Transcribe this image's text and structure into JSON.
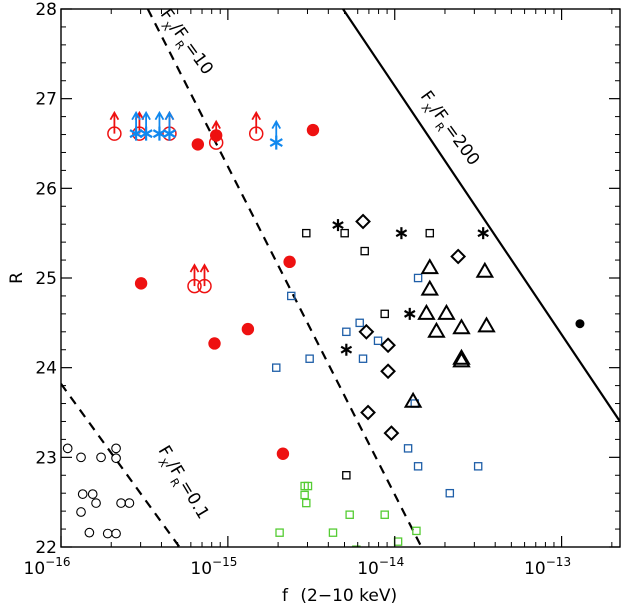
{
  "chart_data": {
    "type": "scatter",
    "xlabel_main": "f",
    "xlabel_suffix": "(2−10 keV)",
    "ylabel": "R",
    "xscale": "log",
    "xlim_log10": [
      -16.0,
      -12.65
    ],
    "ylim": [
      22,
      28
    ],
    "x_ticks": [
      {
        "base": "10",
        "exp": "−16",
        "log10": -16
      },
      {
        "base": "10",
        "exp": "−15",
        "log10": -15
      },
      {
        "base": "10",
        "exp": "−14",
        "log10": -14
      },
      {
        "base": "10",
        "exp": "−13",
        "log10": -13
      }
    ],
    "y_ticks": [
      "22",
      "23",
      "24",
      "25",
      "26",
      "27",
      "28"
    ],
    "ratio_lines": [
      {
        "name": "FX/FR=10",
        "ratio_value": "10",
        "style": "dashed",
        "points": [
          [
            -15.48,
            28.0
          ],
          [
            -13.84,
            22.0
          ]
        ]
      },
      {
        "name": "FX/FR=200",
        "ratio_value": "200",
        "style": "solid",
        "points": [
          [
            -14.31,
            28.0
          ],
          [
            -12.65,
            23.4
          ]
        ]
      },
      {
        "name": "FX/FR=0.1",
        "ratio_value": "0.1",
        "style": "dashed",
        "points": [
          [
            -16.0,
            23.82
          ],
          [
            -15.29,
            22.0
          ]
        ]
      }
    ],
    "ratio_label_parts": {
      "F": "F",
      "sub": "X",
      "slash": "/F",
      "sub2": "R",
      "eq": "="
    },
    "series": [
      {
        "name": "red-filled-circles",
        "marker": "filled-circle",
        "color": "#ee1111",
        "points": [
          [
            -15.52,
            24.94
          ],
          [
            -15.18,
            26.49
          ],
          [
            -15.07,
            26.59
          ],
          [
            -15.08,
            24.27
          ],
          [
            -14.88,
            24.43
          ],
          [
            -14.49,
            26.65
          ],
          [
            -14.63,
            25.18
          ],
          [
            -14.67,
            23.04
          ]
        ]
      },
      {
        "name": "red-open-circles-upper-limit",
        "marker": "open-circle-arrow",
        "color": "#ee1111",
        "points": [
          [
            -15.68,
            26.61
          ],
          [
            -15.53,
            26.61
          ],
          [
            -15.35,
            26.61
          ],
          [
            -15.07,
            26.51
          ],
          [
            -14.83,
            26.61
          ],
          [
            -15.2,
            24.91
          ],
          [
            -15.14,
            24.91
          ]
        ]
      },
      {
        "name": "blue-asterisks-upper-limit",
        "marker": "asterisk-arrow",
        "color": "#1188ee",
        "points": [
          [
            -15.55,
            26.61
          ],
          [
            -15.49,
            26.61
          ],
          [
            -15.41,
            26.61
          ],
          [
            -15.35,
            26.61
          ],
          [
            -14.71,
            26.51
          ]
        ]
      },
      {
        "name": "blue-open-squares",
        "marker": "open-square",
        "color": "#1f5fa8",
        "points": [
          [
            -14.71,
            24.0
          ],
          [
            -14.62,
            24.8
          ],
          [
            -14.51,
            24.1
          ],
          [
            -14.29,
            24.4
          ],
          [
            -14.21,
            24.5
          ],
          [
            -14.19,
            24.1
          ],
          [
            -14.1,
            24.3
          ],
          [
            -13.92,
            23.1
          ],
          [
            -13.88,
            23.6
          ],
          [
            -13.86,
            25.0
          ],
          [
            -13.86,
            22.9
          ],
          [
            -13.67,
            22.6
          ],
          [
            -13.5,
            22.9
          ]
        ]
      },
      {
        "name": "black-open-squares",
        "marker": "open-square",
        "color": "#000000",
        "points": [
          [
            -14.53,
            25.5
          ],
          [
            -14.3,
            25.5
          ],
          [
            -14.18,
            25.3
          ],
          [
            -14.06,
            24.6
          ],
          [
            -13.79,
            25.5
          ],
          [
            -14.29,
            22.8
          ]
        ]
      },
      {
        "name": "black-asterisks",
        "marker": "asterisk",
        "color": "#000000",
        "points": [
          [
            -14.34,
            25.59
          ],
          [
            -13.96,
            25.5
          ],
          [
            -13.47,
            25.5
          ],
          [
            -13.91,
            24.6
          ],
          [
            -14.29,
            24.2
          ]
        ]
      },
      {
        "name": "black-diamonds",
        "marker": "diamond",
        "color": "#000000",
        "points": [
          [
            -14.19,
            25.63
          ],
          [
            -14.17,
            24.4
          ],
          [
            -14.04,
            24.25
          ],
          [
            -14.04,
            23.96
          ],
          [
            -14.16,
            23.5
          ],
          [
            -14.02,
            23.27
          ],
          [
            -13.62,
            25.24
          ]
        ]
      },
      {
        "name": "black-triangles",
        "marker": "open-triangle",
        "color": "#000000",
        "points": [
          [
            -13.79,
            25.11
          ],
          [
            -13.79,
            24.87
          ],
          [
            -13.81,
            24.6
          ],
          [
            -13.75,
            24.4
          ],
          [
            -13.69,
            24.6
          ],
          [
            -13.6,
            24.44
          ],
          [
            -13.46,
            25.07
          ],
          [
            -13.45,
            24.46
          ],
          [
            -13.6,
            24.1
          ],
          [
            -13.6,
            24.07
          ],
          [
            -13.89,
            23.62
          ]
        ]
      },
      {
        "name": "green-open-squares",
        "marker": "open-square",
        "color": "#55cc33",
        "points": [
          [
            -14.69,
            22.16
          ],
          [
            -14.54,
            22.58
          ],
          [
            -14.54,
            22.68
          ],
          [
            -14.52,
            22.68
          ],
          [
            -14.53,
            22.49
          ],
          [
            -14.37,
            22.16
          ],
          [
            -14.27,
            22.36
          ],
          [
            -14.06,
            22.36
          ],
          [
            -13.98,
            22.06
          ],
          [
            -13.87,
            22.18
          ],
          [
            -14.23,
            21.97
          ],
          [
            -14.0,
            21.95
          ]
        ]
      },
      {
        "name": "black-open-circles",
        "marker": "open-circle",
        "color": "#000000",
        "points": [
          [
            -15.96,
            23.1
          ],
          [
            -15.88,
            23.0
          ],
          [
            -15.76,
            23.0
          ],
          [
            -15.87,
            22.59
          ],
          [
            -15.81,
            22.59
          ],
          [
            -15.79,
            22.49
          ],
          [
            -15.88,
            22.39
          ],
          [
            -15.83,
            22.16
          ],
          [
            -15.67,
            22.99
          ],
          [
            -15.67,
            23.1
          ],
          [
            -15.64,
            22.49
          ],
          [
            -15.72,
            22.15
          ],
          [
            -15.67,
            22.15
          ],
          [
            -15.59,
            22.49
          ]
        ]
      },
      {
        "name": "black-filled-dot",
        "marker": "filled-dot",
        "color": "#000000",
        "points": [
          [
            -12.89,
            24.49
          ]
        ]
      }
    ]
  }
}
